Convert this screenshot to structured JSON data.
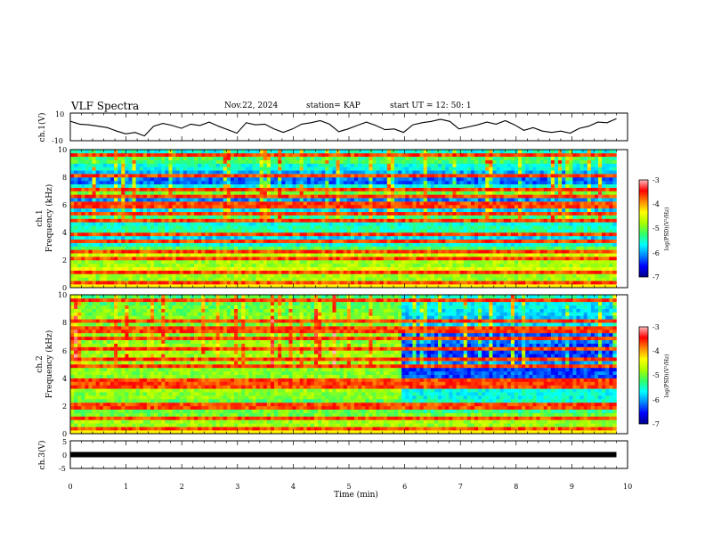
{
  "header": {
    "title": "VLF Spectra",
    "date": "Nov.22, 2024",
    "station": "station= KAP",
    "start": "start  UT =   12: 50: 1"
  },
  "colors": {
    "scale": [
      "#000088",
      "#0000ff",
      "#0088ff",
      "#00ffff",
      "#33ff66",
      "#a8ff00",
      "#ffff00",
      "#ff8800",
      "#ff0000",
      "#ffbbbb"
    ]
  },
  "chart_data": [
    {
      "type": "line",
      "panel": "ch1-voltage",
      "ylabel": "ch.1(V)",
      "ylim": [
        -10,
        10
      ],
      "yticks": [
        "10",
        "-10"
      ],
      "xlim": [
        0,
        9.8
      ],
      "series": [
        {
          "values": [
            4.1,
            2.0,
            1.5,
            0.5,
            -0.5,
            -3.0,
            -5.0,
            -4.0,
            -6.5,
            0.5,
            2.5,
            1.0,
            -1.0,
            2.0,
            1.0,
            3.5,
            0.5,
            -2.0,
            -4.5,
            3.0,
            1.5,
            2.0,
            -1.5,
            -4.0,
            -1.5,
            2.0,
            3.0,
            4.5,
            2.0,
            -3.5,
            -1.5,
            1.0,
            3.5,
            1.0,
            -2.0,
            -1.5,
            -4.0,
            1.5,
            3.0,
            4.0,
            5.5,
            4.0,
            -1.5,
            0.0,
            1.5,
            3.5,
            2.0,
            4.5,
            1.5,
            -2.5,
            -0.5,
            -3.0,
            -4.0,
            -3.0,
            -4.5,
            -1.0,
            0.5,
            3.5,
            3.0,
            6.0
          ]
        }
      ]
    },
    {
      "type": "heatmap",
      "panel": "ch1-spectrogram",
      "ylabel": "ch.1",
      "ylabel2": "Frequency (kHz)",
      "ylim": [
        0,
        10
      ],
      "yticks": [
        "0",
        "2",
        "4",
        "6",
        "8",
        "10"
      ],
      "xlim": [
        0,
        9.8
      ],
      "bands_low": [
        -4.7,
        -4.8,
        -4.5,
        -4.8,
        -4.6,
        -5.1,
        -5.6,
        -5.8,
        -5.4,
        -5.6,
        -5.3,
        -5.8,
        -6.1,
        -5.0,
        -5.6,
        -6.2,
        -6.0,
        -5.6,
        -5.2,
        -5.6
      ],
      "bands_high": [
        -4.7,
        -4.8,
        -4.5,
        -4.8,
        -4.6,
        -5.1,
        -5.6,
        -5.8,
        -5.4,
        -5.6,
        -5.3,
        -5.8,
        -6.1,
        -5.0,
        -5.6,
        -6.2,
        -6.0,
        -5.6,
        -5.2,
        -5.6
      ],
      "change_at": 5.95,
      "lines_khz": [
        0.4,
        1.2,
        2.2,
        2.6,
        3.3,
        3.8,
        4.9,
        5.3,
        6.0,
        6.6,
        7.1,
        8.1,
        9.6
      ]
    },
    {
      "type": "heatmap",
      "panel": "ch2-spectrogram",
      "ylabel": "ch.2",
      "ylabel2": "Frequency (kHz)",
      "ylim": [
        0,
        10
      ],
      "yticks": [
        "0",
        "2",
        "4",
        "6",
        "8",
        "10"
      ],
      "xlim": [
        0,
        9.8
      ],
      "bands_low": [
        -4.6,
        -4.8,
        -5.0,
        -5.0,
        -5.1,
        -4.9,
        -4.8,
        -4.9,
        -4.9,
        -4.9,
        -4.8,
        -4.8,
        -4.8,
        -4.9,
        -4.9,
        -5.0,
        -4.9,
        -5.0,
        -5.1,
        -5.2
      ],
      "bands_high": [
        -4.6,
        -4.8,
        -5.0,
        -5.3,
        -5.5,
        -5.6,
        -5.6,
        -5.8,
        -6.3,
        -6.4,
        -6.1,
        -6.4,
        -6.3,
        -6.1,
        -6.3,
        -5.8,
        -5.9,
        -5.8,
        -5.7,
        -5.5
      ],
      "change_at": 5.95,
      "lines_khz": [
        0.3,
        1.1,
        2.0,
        3.5,
        3.8,
        4.9,
        5.3,
        6.2,
        6.8,
        7.5,
        8.2,
        9.7
      ]
    },
    {
      "type": "line",
      "panel": "ch3-voltage",
      "ylabel": "ch.3(V)",
      "ylim": [
        -5,
        5
      ],
      "yticks": [
        "5",
        "0",
        "-5"
      ],
      "xlim": [
        0,
        9.8
      ],
      "series": [
        {
          "values": [
            0.0,
            0.0
          ]
        }
      ]
    }
  ],
  "xaxis": {
    "label": "Time  (min)",
    "lim": [
      0,
      10
    ],
    "ticks": [
      "0",
      "1",
      "2",
      "3",
      "4",
      "5",
      "6",
      "7",
      "8",
      "9",
      "10"
    ]
  },
  "colorbars": [
    {
      "label": "log(PSD)(V²/Hz)",
      "lim": [
        -7,
        -3
      ],
      "ticks": [
        "-3",
        "-4",
        "-5",
        "-6",
        "-7"
      ]
    },
    {
      "label": "log(PSD)(V²/Hz)",
      "lim": [
        -7,
        -3
      ],
      "ticks": [
        "-3",
        "-4",
        "-5",
        "-6",
        "-7"
      ]
    }
  ]
}
